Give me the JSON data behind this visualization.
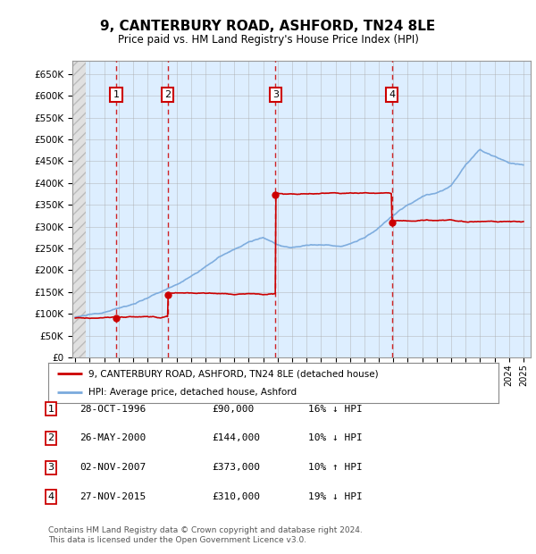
{
  "title": "9, CANTERBURY ROAD, ASHFORD, TN24 8LE",
  "subtitle": "Price paid vs. HM Land Registry's House Price Index (HPI)",
  "ylim": [
    0,
    680000
  ],
  "yticks": [
    0,
    50000,
    100000,
    150000,
    200000,
    250000,
    300000,
    350000,
    400000,
    450000,
    500000,
    550000,
    600000,
    650000
  ],
  "xlim_start": 1993.8,
  "xlim_end": 2025.5,
  "background_color": "#ffffff",
  "chart_bg": "#ddeeff",
  "grid_color": "#aaaaaa",
  "sale_color": "#cc0000",
  "hpi_color": "#7aaadd",
  "hpi_years": [
    1994,
    1995,
    1996,
    1997,
    1998,
    1999,
    2000,
    2001,
    2002,
    2003,
    2004,
    2005,
    2006,
    2007,
    2008,
    2009,
    2010,
    2011,
    2012,
    2013,
    2014,
    2015,
    2016,
    2017,
    2018,
    2019,
    2020,
    2021,
    2022,
    2023,
    2024,
    2025
  ],
  "hpi_prices": [
    92000,
    97000,
    100000,
    110000,
    120000,
    132000,
    148000,
    162000,
    182000,
    205000,
    228000,
    242000,
    258000,
    268000,
    252000,
    245000,
    252000,
    253000,
    250000,
    257000,
    272000,
    293000,
    318000,
    343000,
    363000,
    372000,
    388000,
    438000,
    475000,
    462000,
    448000,
    445000
  ],
  "sales": [
    {
      "year": 1996.83,
      "price": 90000,
      "label": "1"
    },
    {
      "year": 2000.4,
      "price": 144000,
      "label": "2"
    },
    {
      "year": 2007.84,
      "price": 373000,
      "label": "3"
    },
    {
      "year": 2015.9,
      "price": 310000,
      "label": "4"
    }
  ],
  "legend_sale_label": "9, CANTERBURY ROAD, ASHFORD, TN24 8LE (detached house)",
  "legend_hpi_label": "HPI: Average price, detached house, Ashford",
  "table_rows": [
    {
      "num": "1",
      "date": "28-OCT-1996",
      "price": "£90,000",
      "pct": "16% ↓ HPI"
    },
    {
      "num": "2",
      "date": "26-MAY-2000",
      "price": "£144,000",
      "pct": "10% ↓ HPI"
    },
    {
      "num": "3",
      "date": "02-NOV-2007",
      "price": "£373,000",
      "pct": "10% ↑ HPI"
    },
    {
      "num": "4",
      "date": "27-NOV-2015",
      "price": "£310,000",
      "pct": "19% ↓ HPI"
    }
  ],
  "footer": "Contains HM Land Registry data © Crown copyright and database right 2024.\nThis data is licensed under the Open Government Licence v3.0."
}
